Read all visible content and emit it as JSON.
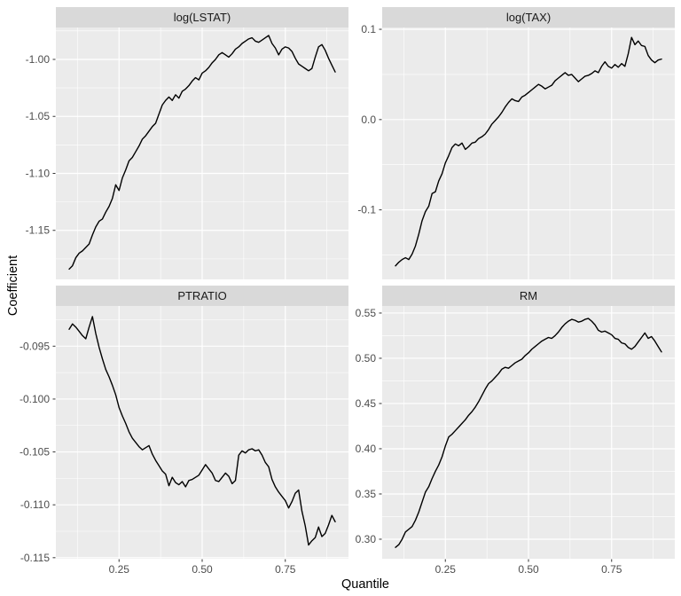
{
  "figure": {
    "xlabel": "Quantile",
    "ylabel": "Coefficient",
    "colors": {
      "background": "#FFFFFF",
      "panel_bg": "#EBEBEB",
      "strip_bg": "#D9D9D9",
      "grid": "#FFFFFF",
      "line": "#000000",
      "tick_label": "#4D4D4D",
      "tick_mark": "#333333",
      "strip_text": "#1A1A1A",
      "axis_title": "#000000"
    }
  },
  "chart_data": [
    {
      "type": "line",
      "title": "log(LSTAT)",
      "row": 0,
      "col": 0,
      "xlabel": "Quantile",
      "ylabel": "Coefficient",
      "grid": true,
      "legend": "none",
      "xlim": [
        0.06,
        0.94
      ],
      "ylim": [
        -1.193,
        -0.972
      ],
      "xticks": [
        0.25,
        0.5,
        0.75
      ],
      "xtick_labels": [
        "0.25",
        "0.50",
        "0.75"
      ],
      "show_x_labels": false,
      "yticks": [
        -1.15,
        -1.1,
        -1.05,
        -1.0
      ],
      "ytick_labels": [
        "-1.15",
        "-1.10",
        "-1.05",
        "-1.00"
      ],
      "x_start": 0.1,
      "x_step": 0.01,
      "values": [
        -1.184,
        -1.181,
        -1.174,
        -1.17,
        -1.168,
        -1.165,
        -1.162,
        -1.154,
        -1.147,
        -1.142,
        -1.14,
        -1.134,
        -1.129,
        -1.122,
        -1.11,
        -1.115,
        -1.104,
        -1.097,
        -1.089,
        -1.086,
        -1.081,
        -1.076,
        -1.07,
        -1.067,
        -1.063,
        -1.059,
        -1.056,
        -1.048,
        -1.04,
        -1.036,
        -1.033,
        -1.036,
        -1.031,
        -1.034,
        -1.028,
        -1.026,
        -1.023,
        -1.019,
        -1.016,
        -1.018,
        -1.012,
        -1.01,
        -1.007,
        -1.003,
        -1.0,
        -0.996,
        -0.994,
        -0.996,
        -0.998,
        -0.995,
        -0.991,
        -0.989,
        -0.986,
        -0.984,
        -0.982,
        -0.981,
        -0.984,
        -0.985,
        -0.983,
        -0.981,
        -0.979,
        -0.986,
        -0.99,
        -0.996,
        -0.991,
        -0.989,
        -0.99,
        -0.993,
        -0.999,
        -1.004,
        -1.006,
        -1.008,
        -1.01,
        -1.008,
        -0.998,
        -0.989,
        -0.987,
        -0.992,
        -0.999,
        -1.005,
        -1.011
      ]
    },
    {
      "type": "line",
      "title": "log(TAX)",
      "row": 0,
      "col": 1,
      "xlabel": "Quantile",
      "ylabel": "Coefficient",
      "grid": true,
      "legend": "none",
      "xlim": [
        0.06,
        0.94
      ],
      "ylim": [
        -0.177,
        0.102
      ],
      "xticks": [
        0.25,
        0.5,
        0.75
      ],
      "xtick_labels": [
        "0.25",
        "0.50",
        "0.75"
      ],
      "show_x_labels": false,
      "yticks": [
        -0.1,
        0.0,
        0.1
      ],
      "ytick_labels": [
        "-0.1",
        "0.0",
        "0.1"
      ],
      "x_start": 0.1,
      "x_step": 0.01,
      "values": [
        -0.162,
        -0.158,
        -0.155,
        -0.153,
        -0.155,
        -0.149,
        -0.14,
        -0.127,
        -0.112,
        -0.102,
        -0.096,
        -0.082,
        -0.08,
        -0.068,
        -0.06,
        -0.048,
        -0.04,
        -0.031,
        -0.027,
        -0.029,
        -0.026,
        -0.033,
        -0.03,
        -0.026,
        -0.025,
        -0.021,
        -0.019,
        -0.016,
        -0.011,
        -0.005,
        -0.001,
        0.003,
        0.008,
        0.014,
        0.019,
        0.023,
        0.021,
        0.02,
        0.025,
        0.027,
        0.03,
        0.033,
        0.036,
        0.039,
        0.037,
        0.034,
        0.036,
        0.038,
        0.043,
        0.046,
        0.049,
        0.052,
        0.049,
        0.05,
        0.046,
        0.042,
        0.045,
        0.048,
        0.049,
        0.051,
        0.054,
        0.052,
        0.059,
        0.064,
        0.059,
        0.057,
        0.061,
        0.058,
        0.062,
        0.059,
        0.073,
        0.091,
        0.083,
        0.087,
        0.082,
        0.081,
        0.071,
        0.066,
        0.063,
        0.066,
        0.067
      ]
    },
    {
      "type": "line",
      "title": "PTRATIO",
      "row": 1,
      "col": 0,
      "xlabel": "Quantile",
      "ylabel": "Coefficient",
      "grid": true,
      "legend": "none",
      "xlim": [
        0.06,
        0.94
      ],
      "ylim": [
        -0.1151,
        -0.0912
      ],
      "xticks": [
        0.25,
        0.5,
        0.75
      ],
      "xtick_labels": [
        "0.25",
        "0.50",
        "0.75"
      ],
      "show_x_labels": true,
      "yticks": [
        -0.115,
        -0.11,
        -0.105,
        -0.1,
        -0.095
      ],
      "ytick_labels": [
        "-0.115",
        "-0.110",
        "-0.105",
        "-0.100",
        "-0.095"
      ],
      "x_start": 0.1,
      "x_step": 0.01,
      "values": [
        -0.0934,
        -0.0929,
        -0.0932,
        -0.0936,
        -0.094,
        -0.0943,
        -0.0932,
        -0.0922,
        -0.0938,
        -0.0951,
        -0.0962,
        -0.0972,
        -0.0979,
        -0.0987,
        -0.0996,
        -0.1008,
        -0.1016,
        -0.1023,
        -0.1031,
        -0.1037,
        -0.1041,
        -0.1045,
        -0.1048,
        -0.1046,
        -0.1044,
        -0.1052,
        -0.1058,
        -0.1063,
        -0.1068,
        -0.1071,
        -0.1082,
        -0.1074,
        -0.1079,
        -0.1081,
        -0.1078,
        -0.1083,
        -0.1077,
        -0.1076,
        -0.1074,
        -0.1072,
        -0.1067,
        -0.1062,
        -0.1066,
        -0.107,
        -0.1077,
        -0.1078,
        -0.1074,
        -0.107,
        -0.1073,
        -0.108,
        -0.1077,
        -0.1053,
        -0.1049,
        -0.1051,
        -0.1048,
        -0.1047,
        -0.1049,
        -0.1048,
        -0.1053,
        -0.106,
        -0.1064,
        -0.1076,
        -0.1083,
        -0.1088,
        -0.1092,
        -0.1096,
        -0.1103,
        -0.1097,
        -0.1089,
        -0.1086,
        -0.1106,
        -0.112,
        -0.1138,
        -0.1134,
        -0.1131,
        -0.1121,
        -0.113,
        -0.1127,
        -0.1119,
        -0.111,
        -0.1116
      ]
    },
    {
      "type": "line",
      "title": "RM",
      "row": 1,
      "col": 1,
      "xlabel": "Quantile",
      "ylabel": "Coefficient",
      "grid": true,
      "legend": "none",
      "xlim": [
        0.06,
        0.94
      ],
      "ylim": [
        0.2784,
        0.5578
      ],
      "xticks": [
        0.25,
        0.5,
        0.75
      ],
      "xtick_labels": [
        "0.25",
        "0.50",
        "0.75"
      ],
      "show_x_labels": true,
      "yticks": [
        0.3,
        0.35,
        0.4,
        0.45,
        0.5,
        0.55
      ],
      "ytick_labels": [
        "0.30",
        "0.35",
        "0.40",
        "0.45",
        "0.50",
        "0.55"
      ],
      "x_start": 0.1,
      "x_step": 0.01,
      "values": [
        0.291,
        0.294,
        0.3,
        0.308,
        0.311,
        0.314,
        0.321,
        0.33,
        0.341,
        0.352,
        0.358,
        0.367,
        0.375,
        0.382,
        0.391,
        0.403,
        0.413,
        0.416,
        0.42,
        0.424,
        0.428,
        0.432,
        0.437,
        0.441,
        0.446,
        0.452,
        0.459,
        0.466,
        0.472,
        0.475,
        0.479,
        0.483,
        0.488,
        0.49,
        0.489,
        0.492,
        0.495,
        0.497,
        0.499,
        0.503,
        0.506,
        0.51,
        0.513,
        0.516,
        0.519,
        0.521,
        0.523,
        0.522,
        0.525,
        0.529,
        0.534,
        0.538,
        0.541,
        0.543,
        0.542,
        0.54,
        0.541,
        0.543,
        0.544,
        0.541,
        0.537,
        0.531,
        0.529,
        0.53,
        0.528,
        0.526,
        0.522,
        0.521,
        0.517,
        0.516,
        0.512,
        0.51,
        0.513,
        0.518,
        0.523,
        0.528,
        0.522,
        0.524,
        0.519,
        0.513,
        0.507
      ]
    }
  ]
}
